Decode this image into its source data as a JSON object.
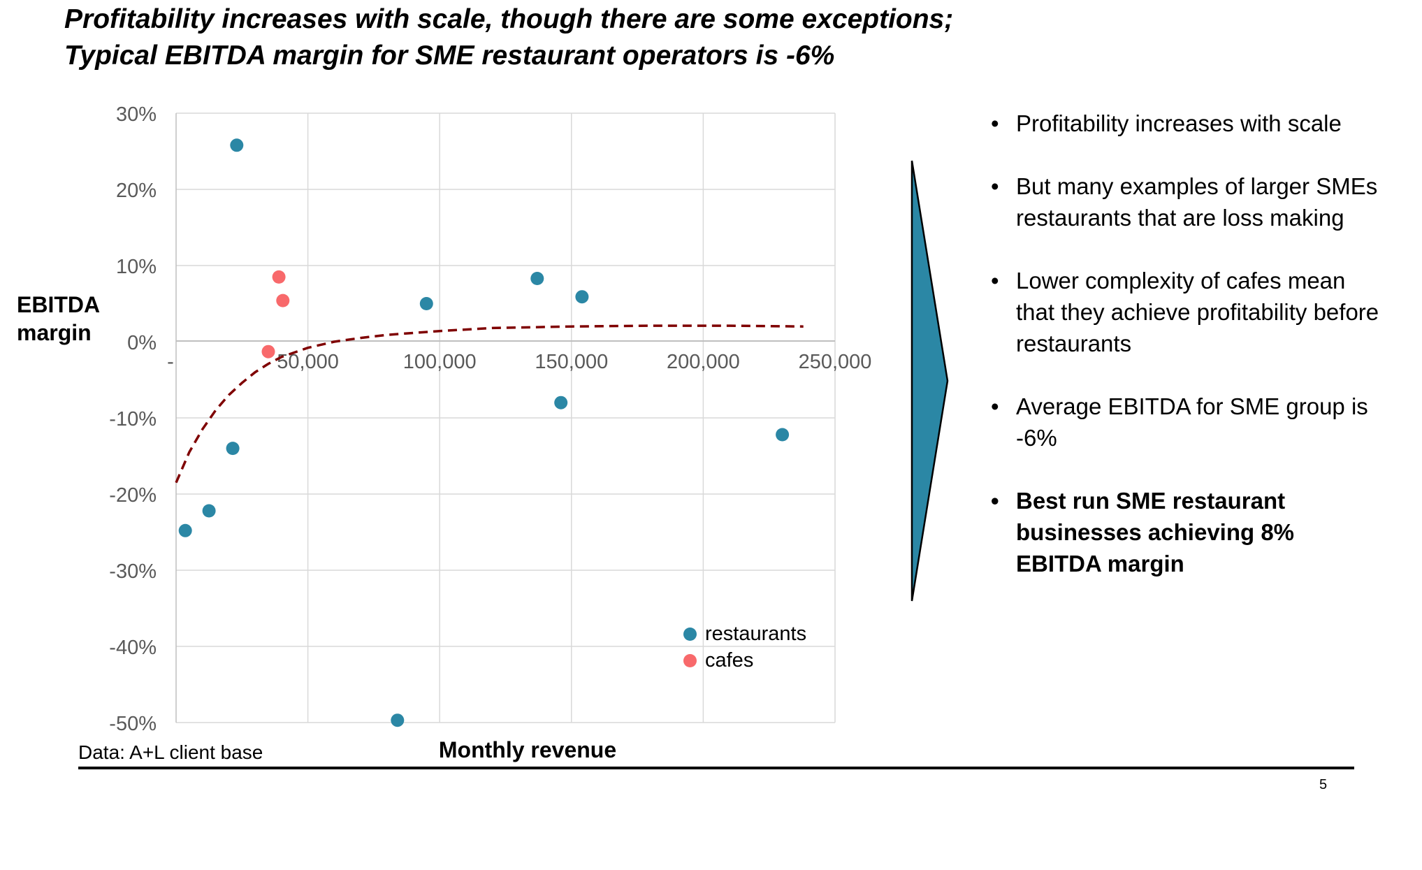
{
  "title": {
    "line1": "Profitability increases with scale, though there are some exceptions;",
    "line2": "Typical EBITDA margin for SME restaurant operators is -6%"
  },
  "source_note": "Data: A+L client base",
  "page_number": "5",
  "bullets": [
    {
      "text": "Profitability increases with scale",
      "bold": false
    },
    {
      "text": "But many examples of larger SMEs restaurants that are loss making",
      "bold": false
    },
    {
      "text": "Lower complexity of cafes mean that they achieve profitability before restaurants",
      "bold": false
    },
    {
      "text": "Average EBITDA for SME group is -6%",
      "bold": false
    },
    {
      "text": "Best run SME restaurant businesses achieving 8% EBITDA margin",
      "bold": true
    }
  ],
  "bullet_glyph": "•",
  "chart_data": {
    "type": "scatter",
    "xlabel": "Monthly revenue",
    "ylabel": "EBITDA margin",
    "xlim": [
      0,
      250000
    ],
    "ylim": [
      -0.5,
      0.3
    ],
    "x_ticks": [
      0,
      50000,
      100000,
      150000,
      200000,
      250000
    ],
    "x_tick_labels": [
      "-",
      "50,000",
      "100,000",
      "150,000",
      "200,000",
      "250,000"
    ],
    "y_ticks": [
      0.3,
      0.2,
      0.1,
      0,
      -0.1,
      -0.2,
      -0.3,
      -0.4,
      -0.5
    ],
    "y_tick_labels": [
      "30%",
      "20%",
      "10%",
      "0%",
      "-10%",
      "-20%",
      "-30%",
      "-40%",
      "-50%"
    ],
    "grid": true,
    "legend_position": "bottom-right",
    "series": [
      {
        "name": "restaurants",
        "color": "#2b87a5",
        "points": [
          {
            "x": 23000,
            "y": 0.258
          },
          {
            "x": 3500,
            "y": -0.248
          },
          {
            "x": 12500,
            "y": -0.222
          },
          {
            "x": 21500,
            "y": -0.14
          },
          {
            "x": 84000,
            "y": -0.497
          },
          {
            "x": 95000,
            "y": 0.05
          },
          {
            "x": 137000,
            "y": 0.083
          },
          {
            "x": 146000,
            "y": -0.08
          },
          {
            "x": 154000,
            "y": 0.059
          },
          {
            "x": 230000,
            "y": -0.122
          }
        ]
      },
      {
        "name": "cafes",
        "color": "#f8696b",
        "points": [
          {
            "x": 39000,
            "y": 0.085
          },
          {
            "x": 40500,
            "y": 0.054
          },
          {
            "x": 35000,
            "y": -0.013
          }
        ]
      }
    ],
    "trendline": {
      "style": "dashed",
      "color": "#7f0000",
      "points": [
        {
          "x": 0,
          "y": -0.185
        },
        {
          "x": 5000,
          "y": -0.145
        },
        {
          "x": 10000,
          "y": -0.115
        },
        {
          "x": 15000,
          "y": -0.09
        },
        {
          "x": 20000,
          "y": -0.07
        },
        {
          "x": 25000,
          "y": -0.054
        },
        {
          "x": 30000,
          "y": -0.04
        },
        {
          "x": 35000,
          "y": -0.029
        },
        {
          "x": 40000,
          "y": -0.02
        },
        {
          "x": 50000,
          "y": -0.008
        },
        {
          "x": 60000,
          "y": 0.0
        },
        {
          "x": 70000,
          "y": 0.005
        },
        {
          "x": 80000,
          "y": 0.009
        },
        {
          "x": 100000,
          "y": 0.014
        },
        {
          "x": 120000,
          "y": 0.018
        },
        {
          "x": 150000,
          "y": 0.02
        },
        {
          "x": 180000,
          "y": 0.021
        },
        {
          "x": 210000,
          "y": 0.021
        },
        {
          "x": 238000,
          "y": 0.02
        }
      ]
    }
  },
  "arrow": {
    "fill": "#2b87a5",
    "stroke": "#000000"
  }
}
